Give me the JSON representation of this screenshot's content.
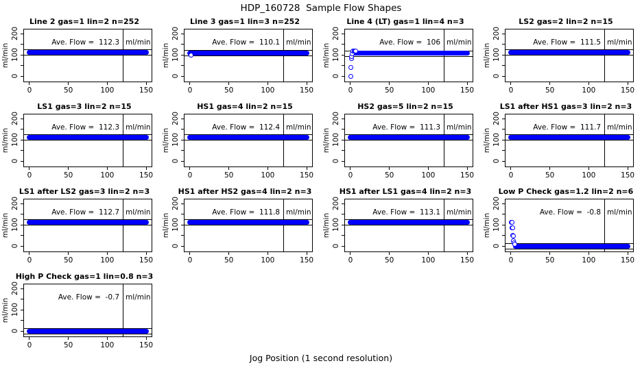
{
  "figure": {
    "title": "HDP_160728  Sample Flow Shapes",
    "x_axis_title": "Jog Position (1 second resolution)"
  },
  "colors": {
    "point_fill": "#0000ff",
    "axis_line": "#000000",
    "background": "#ffffff"
  },
  "chart_meta": {
    "type": "scatter",
    "x_ticks": [
      0,
      50,
      100,
      150
    ],
    "y_ticks": [
      0,
      100,
      200
    ],
    "y_minor_ticks": [
      0,
      50,
      100,
      150,
      200
    ],
    "xlim": [
      -7,
      157
    ],
    "ylim": [
      -25,
      220
    ],
    "y_unit": "ml/min",
    "vertical_ref_x": 120,
    "tolerance_band_halfwidth": 13,
    "ave_label_prefix": "Ave. Flow =",
    "grid": "off",
    "legend": "none"
  },
  "chart_data": [
    {
      "title": "Line 2 gas=1 lin=2 n=252",
      "ann": "Ave. Flow =  112.3",
      "unit": "ml/min",
      "ave": 112.3,
      "band": {
        "y": 112.3,
        "x_start": -1,
        "x_end": 151
      },
      "extra_points": []
    },
    {
      "title": "Line 3 gas=1 lin=3 n=252",
      "ann": "Ave. Flow =  110.1",
      "unit": "ml/min",
      "ave": 110.1,
      "band": {
        "y": 110.1,
        "x_start": -1,
        "x_end": 151
      },
      "extra_points": [
        [
          2,
          97
        ]
      ]
    },
    {
      "title": "Line 4 (LT) gas=1 lin=4 n=3",
      "ann": "Ave. Flow =  106",
      "unit": "ml/min",
      "ave": 106,
      "band": {
        "y": 110,
        "x_start": 3,
        "x_end": 151
      },
      "extra_points": [
        [
          1,
          -2
        ],
        [
          1,
          40
        ],
        [
          2,
          80
        ],
        [
          2,
          90
        ],
        [
          3,
          104
        ],
        [
          4,
          116
        ],
        [
          5,
          118
        ],
        [
          6,
          117
        ],
        [
          7,
          116
        ]
      ]
    },
    {
      "title": "LS2 gas=2 lin=2 n=15",
      "ann": "Ave. Flow =  111.5",
      "unit": "ml/min",
      "ave": 111.5,
      "band": {
        "y": 111.5,
        "x_start": -1,
        "x_end": 151
      },
      "extra_points": []
    },
    {
      "title": "LS1 gas=3 lin=2 n=15",
      "ann": "Ave. Flow =  112.3",
      "unit": "ml/min",
      "ave": 112.3,
      "band": {
        "y": 112.3,
        "x_start": -1,
        "x_end": 151
      },
      "extra_points": []
    },
    {
      "title": "HS1 gas=4 lin=2 n=15",
      "ann": "Ave. Flow =  112.4",
      "unit": "ml/min",
      "ave": 112.4,
      "band": {
        "y": 112.4,
        "x_start": -1,
        "x_end": 151
      },
      "extra_points": []
    },
    {
      "title": "HS2 gas=5 lin=2 n=15",
      "ann": "Ave. Flow =  111.3",
      "unit": "ml/min",
      "ave": 111.3,
      "band": {
        "y": 111.3,
        "x_start": -1,
        "x_end": 151
      },
      "extra_points": []
    },
    {
      "title": "LS1 after HS1 gas=3 lin=2 n=3",
      "ann": "Ave. Flow =  111.7",
      "unit": "ml/min",
      "ave": 111.7,
      "band": {
        "y": 111.7,
        "x_start": -1,
        "x_end": 151
      },
      "extra_points": []
    },
    {
      "title": "LS1 after LS2 gas=3 lin=2 n=3",
      "ann": "Ave. Flow =  112.7",
      "unit": "ml/min",
      "ave": 112.7,
      "band": {
        "y": 112.7,
        "x_start": -1,
        "x_end": 151
      },
      "extra_points": []
    },
    {
      "title": "HS1 after HS2 gas=4 lin=2 n=3",
      "ann": "Ave. Flow =  111.8",
      "unit": "ml/min",
      "ave": 111.8,
      "band": {
        "y": 111.8,
        "x_start": -1,
        "x_end": 151
      },
      "extra_points": []
    },
    {
      "title": "HS1 after LS1 gas=4 lin=2 n=3",
      "ann": "Ave. Flow =  113.1",
      "unit": "ml/min",
      "ave": 113.1,
      "band": {
        "y": 113.1,
        "x_start": -1,
        "x_end": 151
      },
      "extra_points": []
    },
    {
      "title": "Low P Check gas=1.2 lin=2 n=6",
      "ann": "Ave. Flow =  -0.8",
      "unit": "ml/min",
      "ave": -0.8,
      "band": {
        "y": -0.8,
        "x_start": 5,
        "x_end": 151
      },
      "extra_points": [
        [
          1,
          112
        ],
        [
          1.5,
          110
        ],
        [
          2,
          85
        ],
        [
          2.5,
          84
        ],
        [
          3,
          50
        ],
        [
          3.5,
          45
        ],
        [
          4,
          22
        ],
        [
          4.5,
          14
        ],
        [
          5,
          7
        ]
      ]
    },
    {
      "title": "High P Check gas=1 lin=0.8 n=3",
      "ann": "Ave. Flow =  -0.7",
      "unit": "ml/min",
      "ave": -0.7,
      "band": {
        "y": -0.7,
        "x_start": -1,
        "x_end": 151
      },
      "extra_points": []
    }
  ]
}
